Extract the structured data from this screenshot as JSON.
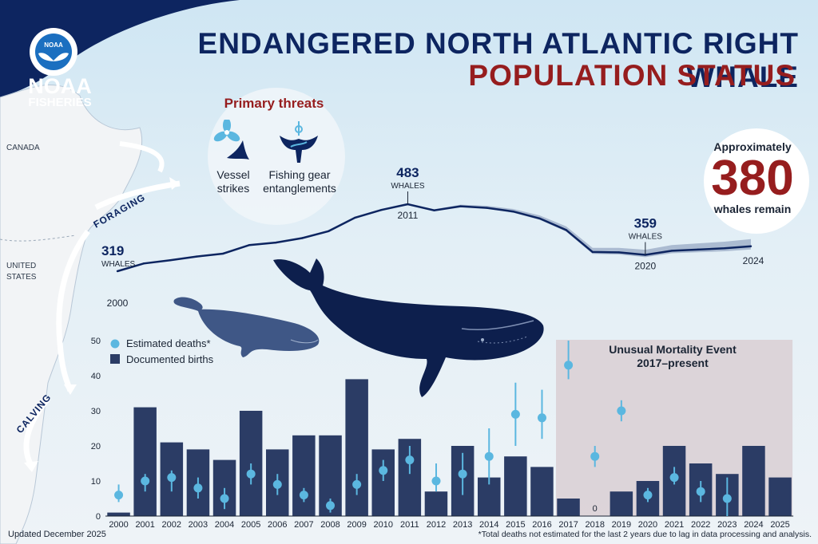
{
  "header": {
    "title_line1": "ENDANGERED NORTH ATLANTIC RIGHT WHALE",
    "title_line2": "POPULATION STATUS"
  },
  "logo": {
    "word": "NOAA",
    "sub": "FISHERIES",
    "seal_text": "NOAA"
  },
  "map": {
    "label_canada": "CANADA",
    "label_us_line1": "UNITED",
    "label_us_line2": "STATES",
    "arrow_foraging": "FORAGING",
    "arrow_calving": "CALVING"
  },
  "threats": {
    "title": "Primary threats",
    "items": [
      {
        "icon": "vessel-propeller-icon",
        "line1": "Vessel",
        "line2": "strikes"
      },
      {
        "icon": "fishing-gear-tail-icon",
        "line1": "Fishing gear",
        "line2": "entanglements"
      }
    ]
  },
  "remaining": {
    "prefix": "Approximately",
    "number": "380",
    "suffix": "whales remain"
  },
  "population_callouts": [
    {
      "value": "319",
      "unit": "WHALES",
      "year": "2000"
    },
    {
      "value": "483",
      "unit": "WHALES",
      "year": "2011"
    },
    {
      "value": "359",
      "unit": "WHALES",
      "year": "2020"
    },
    {
      "value": "",
      "unit": "",
      "year": "2024"
    }
  ],
  "legend": {
    "deaths": "Estimated deaths*",
    "births": "Documented births"
  },
  "ume": {
    "line1": "Unusual Mortality Event",
    "line2": "2017–present",
    "start_year": 2017,
    "end_year": 2025
  },
  "footer": {
    "updated": "Updated December 2025",
    "footnote": "*Total deaths not estimated for the last 2 years due to lag in data processing and analysis."
  },
  "colors": {
    "navy": "#0d2560",
    "bar": "#2b3c65",
    "dot": "#5bb7e0",
    "red": "#961d1e",
    "ume_bg": "#d9cfd3"
  },
  "chart_data": [
    {
      "type": "line",
      "x": [
        2000,
        2001,
        2002,
        2003,
        2004,
        2005,
        2006,
        2007,
        2008,
        2009,
        2010,
        2011,
        2012,
        2013,
        2014,
        2015,
        2016,
        2017,
        2018,
        2019,
        2020,
        2021,
        2022,
        2023,
        2024
      ],
      "series": [
        {
          "values": [
            319,
            338,
            346,
            355,
            362,
            383,
            389,
            400,
            417,
            450,
            469,
            483,
            468,
            478,
            474,
            465,
            448,
            420,
            366,
            365,
            359,
            369,
            372,
            375,
            380
          ]
        }
      ]
    },
    {
      "type": "bar",
      "categories": [
        "2000",
        "2001",
        "2002",
        "2003",
        "2004",
        "2005",
        "2006",
        "2007",
        "2008",
        "2009",
        "2010",
        "2011",
        "2012",
        "2013",
        "2014",
        "2015",
        "2016",
        "2017",
        "2018",
        "2019",
        "2020",
        "2021",
        "2022",
        "2023",
        "2024",
        "2025"
      ],
      "ylim": [
        0,
        50
      ],
      "yticks": [
        0,
        10,
        20,
        30,
        40,
        50
      ],
      "series": [
        {
          "name": "Documented births",
          "values": [
            1,
            31,
            21,
            19,
            16,
            30,
            19,
            23,
            23,
            39,
            19,
            22,
            7,
            20,
            11,
            17,
            14,
            5,
            0,
            7,
            10,
            20,
            15,
            12,
            20,
            11
          ]
        },
        {
          "name": "Estimated deaths*",
          "kind": "dot",
          "values": [
            6,
            10,
            11,
            8,
            5,
            12,
            9,
            6,
            3,
            9,
            13,
            16,
            10,
            12,
            17,
            29,
            28,
            43,
            17,
            30,
            6,
            11,
            7,
            5,
            null,
            null
          ],
          "error_low": [
            4,
            7,
            7,
            5,
            2,
            9,
            6,
            4,
            1,
            6,
            10,
            12,
            7,
            6,
            9,
            20,
            22,
            39,
            14,
            27,
            4,
            9,
            4,
            0,
            null,
            null
          ],
          "error_high": [
            9,
            12,
            13,
            11,
            8,
            15,
            12,
            8,
            5,
            12,
            16,
            20,
            15,
            18,
            25,
            38,
            36,
            50,
            20,
            33,
            8,
            14,
            10,
            11,
            null,
            null
          ]
        }
      ],
      "zero_label": "0"
    }
  ]
}
